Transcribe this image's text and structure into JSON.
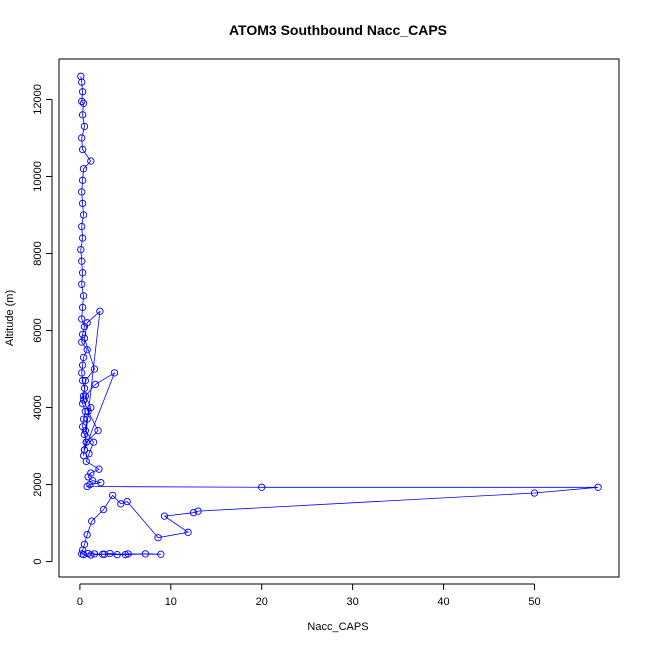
{
  "chart_data": {
    "type": "line",
    "title": "ATOM3 Southbound Nacc_CAPS",
    "xlabel": "Nacc_CAPS",
    "ylabel": "Altitude (m)",
    "xlim": [
      -2.3,
      59.3
    ],
    "ylim": [
      -400,
      13050
    ],
    "xticks": [
      0,
      10,
      20,
      30,
      40,
      50
    ],
    "yticks": [
      0,
      2000,
      4000,
      6000,
      8000,
      10000,
      12000
    ],
    "grid": false,
    "legend": "none",
    "marker": "open-circle",
    "color": "#0000ff",
    "series": [
      {
        "x": [
          0.1,
          0.2,
          0.3,
          0.2,
          0.4,
          0.3,
          0.5,
          0.2,
          0.3,
          1.2,
          0.4,
          0.3,
          0.2,
          0.3,
          0.4,
          0.2,
          0.3,
          0.1,
          0.2,
          0.3,
          0.2,
          0.4,
          0.3,
          0.2,
          0.5,
          0.3,
          0.2,
          0.8,
          0.4,
          0.3,
          0.2,
          0.3,
          0.5,
          0.4,
          0.3,
          0.6,
          0.4,
          0.3,
          0.5,
          0.7,
          0.5,
          0.4,
          2.2,
          0.8,
          0.5,
          1.6,
          0.6,
          0.4,
          0.9,
          2.0,
          0.7,
          0.5,
          3.8,
          1.7,
          0.6,
          1.2,
          0.8,
          0.6,
          1.5,
          1.0,
          0.7,
          2.1,
          1.2,
          0.9,
          1.4,
          2.3,
          1.1,
          0.8,
          20.0,
          57.0,
          50.0,
          13.0,
          12.5,
          9.3,
          11.9,
          8.6,
          5.2,
          4.5,
          3.6,
          2.6,
          1.3,
          0.8,
          0.5,
          0.3,
          0.2,
          0.4,
          1.2,
          2.5,
          3.3,
          5.0,
          7.2,
          8.9,
          5.3,
          4.1,
          2.7,
          1.6,
          0.9
        ],
        "y": [
          12600,
          12450,
          12200,
          11950,
          11900,
          11600,
          11300,
          11000,
          10700,
          10400,
          10200,
          9900,
          9600,
          9300,
          9000,
          8700,
          8400,
          8100,
          7800,
          7500,
          7200,
          6900,
          6600,
          6300,
          6100,
          5900,
          5700,
          5500,
          5300,
          5100,
          4900,
          4700,
          4500,
          4300,
          4100,
          3900,
          3700,
          3500,
          3300,
          3100,
          2900,
          2750,
          6500,
          6200,
          5800,
          5000,
          4700,
          4200,
          3900,
          3400,
          3100,
          2900,
          4900,
          4600,
          4300,
          4000,
          3700,
          3400,
          3100,
          2800,
          2600,
          2400,
          2300,
          2200,
          2100,
          2050,
          2000,
          1950,
          1930,
          1930,
          1780,
          1310,
          1270,
          1180,
          760,
          620,
          1560,
          1500,
          1720,
          1350,
          1050,
          700,
          450,
          300,
          200,
          180,
          170,
          190,
          210,
          180,
          200,
          190,
          200,
          180,
          190,
          200,
          210
        ]
      }
    ]
  }
}
